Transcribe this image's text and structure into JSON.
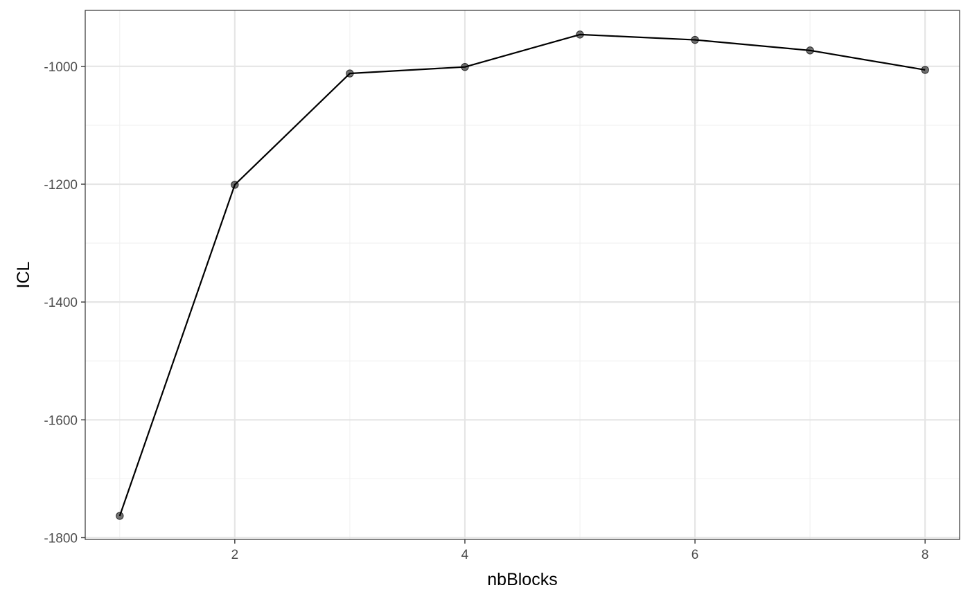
{
  "chart_data": {
    "type": "line",
    "title": "",
    "xlabel": "nbBlocks",
    "ylabel": "ICL",
    "x": [
      1,
      2,
      3,
      4,
      5,
      6,
      7,
      8
    ],
    "series": [
      {
        "values": [
          -1763,
          -1201,
          -1012,
          -1001,
          -946,
          -955,
          -973,
          -1006
        ]
      }
    ],
    "xlim": [
      0.7,
      8.3
    ],
    "ylim": [
      -1803,
      -905
    ],
    "xticks": [
      2,
      4,
      6,
      8
    ],
    "xtick_labels": [
      "2",
      "4",
      "6",
      "8"
    ],
    "yticks": [
      -1800,
      -1600,
      -1400,
      -1200,
      -1000
    ],
    "ytick_labels": [
      "-1800",
      "-1600",
      "-1400",
      "-1200",
      "-1000"
    ],
    "x_minor": [
      1,
      3,
      5,
      7
    ],
    "y_minor": [
      -1700,
      -1500,
      -1300,
      -1100
    ],
    "grid": true,
    "colors": {
      "line": "#000000",
      "point": "#000000",
      "grid_major": "#e5e5e5",
      "grid_minor": "#f0f0f0",
      "panel_border": "#333333",
      "tick_text": "#4d4d4d"
    }
  }
}
